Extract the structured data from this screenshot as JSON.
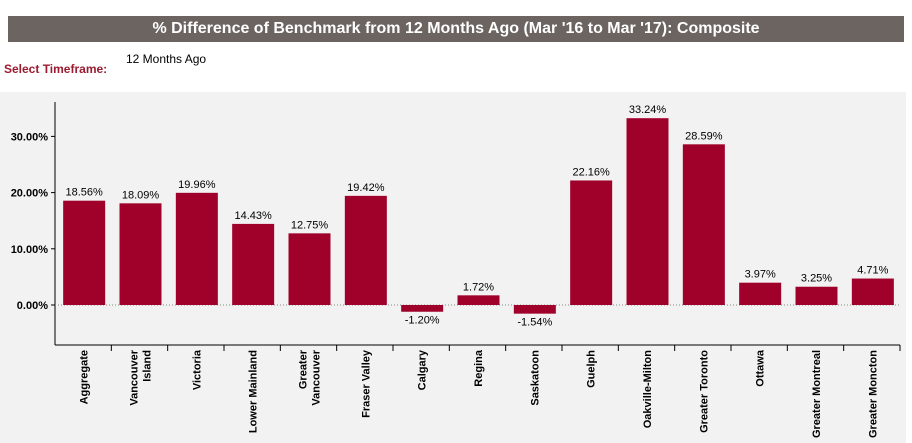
{
  "header": {
    "title": "% Difference of Benchmark from 12 Months Ago (Mar '16 to Mar '17): Composite"
  },
  "timeframe": {
    "label": "Select Timeframe:",
    "value": "12 Months Ago"
  },
  "colors": {
    "bar": "#a0012b",
    "title_bg": "#6b6461",
    "accent_text": "#9b1b30",
    "plot_bg": "#f2f2f2"
  },
  "chart_data": {
    "type": "bar",
    "title": "% Difference of Benchmark from 12 Months Ago (Mar '16 to Mar '17): Composite",
    "categories": [
      [
        "Aggregate"
      ],
      [
        "Vancouver",
        "Island"
      ],
      [
        "Victoria"
      ],
      [
        "Lower Mainland"
      ],
      [
        "Greater",
        "Vancouver"
      ],
      [
        "Fraser Valley"
      ],
      [
        "Calgary"
      ],
      [
        "Regina"
      ],
      [
        "Saskatoon"
      ],
      [
        "Guelph"
      ],
      [
        "Oakville-Milton"
      ],
      [
        "Greater Toronto"
      ],
      [
        "Ottawa"
      ],
      [
        "Greater Montreal"
      ],
      [
        "Greater Moncton"
      ]
    ],
    "values": [
      18.56,
      18.09,
      19.96,
      14.43,
      12.75,
      19.42,
      -1.2,
      1.72,
      -1.54,
      22.16,
      33.24,
      28.59,
      3.97,
      3.25,
      4.71
    ],
    "value_labels": [
      "18.56%",
      "18.09%",
      "19.96%",
      "14.43%",
      "12.75%",
      "19.42%",
      "-1.20%",
      "1.72%",
      "-1.54%",
      "22.16%",
      "33.24%",
      "28.59%",
      "3.97%",
      "3.25%",
      "4.71%"
    ],
    "yticks": [
      0,
      10,
      20,
      30
    ],
    "ytick_labels": [
      "0.00%",
      "10.00%",
      "20.00%",
      "30.00%"
    ],
    "ylim": [
      -6,
      37
    ],
    "grid": false,
    "legend": "none"
  }
}
